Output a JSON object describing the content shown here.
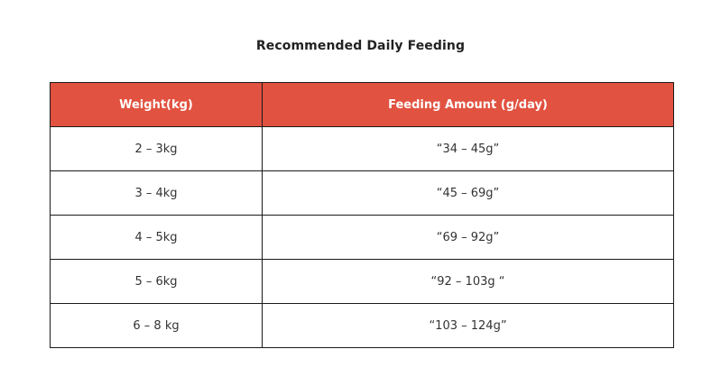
{
  "title": "Recommended Daily Feeding",
  "table": {
    "headers": [
      "Weight(kg)",
      "Feeding Amount (g/day)"
    ],
    "rows": [
      [
        "2 – 3kg",
        "“34 – 45g”"
      ],
      [
        "3 – 4kg",
        "“45 – 69g”"
      ],
      [
        "4 – 5kg",
        "“69 – 92g”"
      ],
      [
        "5 – 6kg",
        "“92 – 103g “"
      ],
      [
        "6 – 8 kg",
        "“103 – 124g”"
      ]
    ]
  },
  "colors": {
    "header_bg": "#e15240",
    "header_text": "#ffffff",
    "border": "#1a1a1a"
  }
}
